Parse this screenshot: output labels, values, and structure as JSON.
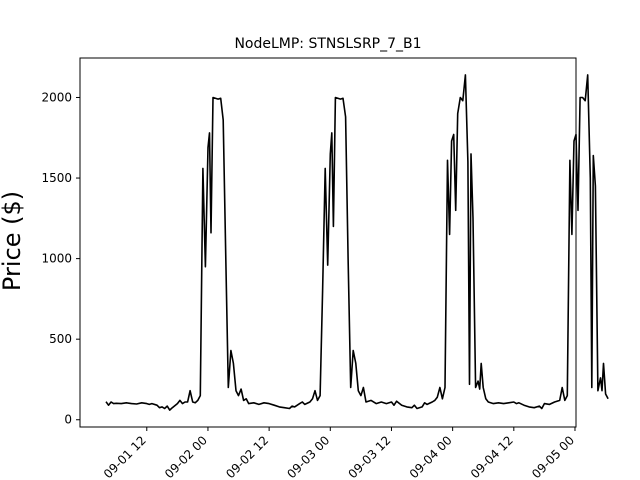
{
  "chart_data": {
    "type": "line",
    "title": "NodeLMP: STNSLSRP_7_B1",
    "xlabel": "",
    "ylabel": "Price ($)",
    "xlim": [
      -1.1,
      96.2
    ],
    "ylim": [
      -45,
      2245
    ],
    "grid": false,
    "color": "#000000",
    "x_axis_unit": "hours since 2023-09-01 00",
    "yticks": [
      0,
      500,
      1000,
      1500,
      2000
    ],
    "xticks": [
      {
        "pos": 12,
        "label": "09-01 12"
      },
      {
        "pos": 24,
        "label": "09-02 00"
      },
      {
        "pos": 36,
        "label": "09-02 12"
      },
      {
        "pos": 48,
        "label": "09-03 00"
      },
      {
        "pos": 60,
        "label": "09-03 12"
      },
      {
        "pos": 72,
        "label": "09-04 00"
      },
      {
        "pos": 84,
        "label": "09-04 12"
      },
      {
        "pos": 96,
        "label": "09-05 00"
      }
    ],
    "series": [
      {
        "name": "",
        "points": [
          [
            4.0,
            112
          ],
          [
            4.5,
            90
          ],
          [
            5.0,
            110
          ],
          [
            5.5,
            100
          ],
          [
            6.0,
            102
          ],
          [
            7.0,
            100
          ],
          [
            8.0,
            105
          ],
          [
            9.0,
            100
          ],
          [
            10.0,
            98
          ],
          [
            11.0,
            105
          ],
          [
            12.0,
            100
          ],
          [
            12.5,
            95
          ],
          [
            13.0,
            100
          ],
          [
            14.0,
            90
          ],
          [
            14.5,
            75
          ],
          [
            15.0,
            80
          ],
          [
            15.5,
            70
          ],
          [
            16.0,
            85
          ],
          [
            16.5,
            60
          ],
          [
            17.0,
            75
          ],
          [
            18.0,
            100
          ],
          [
            18.5,
            120
          ],
          [
            19.0,
            100
          ],
          [
            19.5,
            110
          ],
          [
            20.0,
            110
          ],
          [
            20.5,
            180
          ],
          [
            21.0,
            110
          ],
          [
            21.5,
            105
          ],
          [
            22.0,
            120
          ],
          [
            22.5,
            150
          ],
          [
            23.0,
            1560
          ],
          [
            23.5,
            950
          ],
          [
            24.0,
            1690
          ],
          [
            24.3,
            1780
          ],
          [
            24.6,
            1160
          ],
          [
            25.0,
            2000
          ],
          [
            26.0,
            1990
          ],
          [
            26.5,
            1995
          ],
          [
            27.0,
            1860
          ],
          [
            27.5,
            1000
          ],
          [
            28.0,
            200
          ],
          [
            28.5,
            430
          ],
          [
            29.0,
            350
          ],
          [
            29.5,
            180
          ],
          [
            30.0,
            150
          ],
          [
            30.5,
            190
          ],
          [
            31.0,
            120
          ],
          [
            31.5,
            130
          ],
          [
            32.0,
            100
          ],
          [
            33.0,
            105
          ],
          [
            34.0,
            95
          ],
          [
            35.0,
            105
          ],
          [
            36.0,
            100
          ],
          [
            37.0,
            90
          ],
          [
            38.0,
            80
          ],
          [
            39.0,
            75
          ],
          [
            40.0,
            70
          ],
          [
            40.5,
            85
          ],
          [
            41.0,
            80
          ],
          [
            42.0,
            100
          ],
          [
            42.5,
            110
          ],
          [
            43.0,
            95
          ],
          [
            44.0,
            110
          ],
          [
            44.5,
            130
          ],
          [
            45.0,
            180
          ],
          [
            45.5,
            120
          ],
          [
            46.0,
            150
          ],
          [
            46.5,
            800
          ],
          [
            47.0,
            1560
          ],
          [
            47.5,
            960
          ],
          [
            48.0,
            1650
          ],
          [
            48.3,
            1780
          ],
          [
            48.6,
            1200
          ],
          [
            49.0,
            2000
          ],
          [
            50.0,
            1990
          ],
          [
            50.5,
            1995
          ],
          [
            51.0,
            1880
          ],
          [
            51.5,
            1000
          ],
          [
            52.0,
            200
          ],
          [
            52.5,
            430
          ],
          [
            53.0,
            350
          ],
          [
            53.5,
            180
          ],
          [
            54.0,
            150
          ],
          [
            54.5,
            200
          ],
          [
            55.0,
            110
          ],
          [
            56.0,
            120
          ],
          [
            57.0,
            100
          ],
          [
            58.0,
            110
          ],
          [
            59.0,
            100
          ],
          [
            60.0,
            110
          ],
          [
            60.5,
            90
          ],
          [
            61.0,
            115
          ],
          [
            62.0,
            90
          ],
          [
            63.0,
            80
          ],
          [
            64.0,
            75
          ],
          [
            64.5,
            90
          ],
          [
            65.0,
            70
          ],
          [
            66.0,
            80
          ],
          [
            66.5,
            105
          ],
          [
            67.0,
            95
          ],
          [
            68.0,
            110
          ],
          [
            68.5,
            120
          ],
          [
            69.0,
            140
          ],
          [
            69.5,
            200
          ],
          [
            70.0,
            130
          ],
          [
            70.5,
            200
          ],
          [
            71.0,
            1610
          ],
          [
            71.4,
            1150
          ],
          [
            71.8,
            1730
          ],
          [
            72.2,
            1770
          ],
          [
            72.6,
            1300
          ],
          [
            73.0,
            1900
          ],
          [
            73.5,
            2000
          ],
          [
            74.0,
            1980
          ],
          [
            74.5,
            2140
          ],
          [
            75.0,
            1600
          ],
          [
            75.3,
            220
          ],
          [
            75.6,
            1650
          ],
          [
            76.0,
            1250
          ],
          [
            76.5,
            200
          ],
          [
            77.0,
            240
          ],
          [
            77.3,
            190
          ],
          [
            77.6,
            350
          ],
          [
            78.0,
            200
          ],
          [
            78.5,
            130
          ],
          [
            79.0,
            110
          ],
          [
            80.0,
            100
          ],
          [
            81.0,
            105
          ],
          [
            82.0,
            100
          ],
          [
            83.0,
            105
          ],
          [
            84.0,
            110
          ],
          [
            84.5,
            100
          ],
          [
            85.0,
            105
          ],
          [
            86.0,
            90
          ],
          [
            87.0,
            80
          ],
          [
            88.0,
            75
          ],
          [
            89.0,
            85
          ],
          [
            89.5,
            70
          ],
          [
            90.0,
            100
          ],
          [
            91.0,
            95
          ],
          [
            92.0,
            110
          ],
          [
            93.0,
            120
          ],
          [
            93.5,
            200
          ],
          [
            94.0,
            120
          ],
          [
            94.5,
            150
          ],
          [
            95.0,
            1610
          ],
          [
            95.4,
            1150
          ],
          [
            95.8,
            1730
          ],
          [
            96.2,
            1770
          ],
          [
            96.6,
            1300
          ],
          [
            97.0,
            2000
          ],
          [
            97.5,
            2000
          ],
          [
            98.0,
            1980
          ],
          [
            98.5,
            2140
          ],
          [
            99.0,
            1500
          ],
          [
            99.3,
            200
          ],
          [
            99.6,
            1640
          ],
          [
            100.0,
            1450
          ],
          [
            100.5,
            180
          ],
          [
            101.0,
            260
          ],
          [
            101.3,
            180
          ],
          [
            101.6,
            350
          ],
          [
            102.0,
            160
          ],
          [
            102.5,
            130
          ]
        ]
      }
    ]
  }
}
